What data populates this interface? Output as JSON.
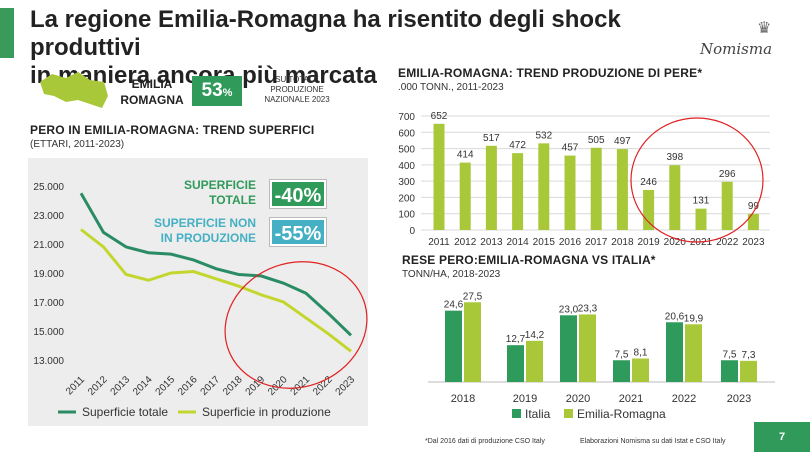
{
  "header": {
    "title_line1": "La regione Emilia-Romagna ha risentito degli shock produttivi",
    "title_line2": "in maniera ancora più marcata",
    "logo": "Nomisma"
  },
  "region": {
    "name_line1": "EMILIA",
    "name_line2": "ROMAGNA",
    "share_value": "53",
    "share_unit": "%",
    "share_note": "SU TOTALE PRODUZIONE NAZIONALE 2023"
  },
  "colors": {
    "accent": "#2f9a5a",
    "italia": "#2e9a5c",
    "emilia": "#a8c83a",
    "line_total": "#2a8c64",
    "line_prod": "#c3d62e",
    "badge_prod": "#45b0c3",
    "circle": "#e02020"
  },
  "annotations": {
    "superficie_totale_l1": "SUPERFICIE",
    "superficie_totale_l2": "TOTALE",
    "superficie_totale_badge": "-40%",
    "superficie_non_prod_l1": "SUPERFICIE NON",
    "superficie_non_prod_l2": "IN PRODUZIONE",
    "superficie_non_prod_badge": "-55%"
  },
  "footer": {
    "note": "*Dal 2016 dati di produzione CSO Italy",
    "source": "Elaborazioni Nomisma su dati Istat e CSO Italy",
    "page": "7"
  },
  "chart_data": [
    {
      "type": "line",
      "title": "PERO IN EMILIA-ROMAGNA: TREND SUPERFICI",
      "subtitle": "(ETTARI, 2011-2023)",
      "x": [
        "2011",
        "2012",
        "2013",
        "2014",
        "2015",
        "2016",
        "2017",
        "2018",
        "2019",
        "2020",
        "2021",
        "2022",
        "2023"
      ],
      "yticks": [
        "25.000",
        "23.000",
        "21.000",
        "19.000",
        "17.000",
        "15.000",
        "13.000"
      ],
      "ylim": [
        13000,
        25000
      ],
      "series": [
        {
          "name": "Superficie totale",
          "values": [
            24500,
            21800,
            20800,
            20400,
            20300,
            19900,
            19300,
            18900,
            18800,
            18300,
            17600,
            16200,
            14700
          ]
        },
        {
          "name": "Superficie in produzione",
          "values": [
            22000,
            20800,
            18900,
            18500,
            19000,
            19100,
            18600,
            18100,
            17500,
            17000,
            15900,
            14800,
            13600
          ]
        }
      ]
    },
    {
      "type": "bar",
      "title": "EMILIA-ROMAGNA: TREND PRODUZIONE DI PERE*",
      "subtitle": ".000 TONN., 2011-2023",
      "categories": [
        "2011",
        "2012",
        "2013",
        "2014",
        "2015",
        "2016",
        "2017",
        "2018",
        "2019",
        "2020",
        "2021",
        "2022",
        "2023"
      ],
      "values": [
        652,
        414,
        517,
        472,
        532,
        457,
        505,
        497,
        246,
        398,
        131,
        296,
        99
      ],
      "yticks": [
        "700",
        "600",
        "500",
        "400",
        "300",
        "200",
        "100",
        "0"
      ],
      "ylim": [
        0,
        700
      ]
    },
    {
      "type": "bar",
      "title": "RESE PERO:EMILIA-ROMAGNA VS ITALIA*",
      "subtitle": "TONN/HA, 2018-2023",
      "categories": [
        "2018",
        "2019",
        "2020",
        "2021",
        "2022",
        "2023"
      ],
      "series": [
        {
          "name": "Italia",
          "values": [
            24.6,
            12.7,
            23.0,
            7.5,
            20.6,
            7.5
          ],
          "labels": [
            "24,6",
            "12,7",
            "23,0",
            "7,5",
            "20,6",
            "7,5"
          ]
        },
        {
          "name": "Emilia-Romagna",
          "values": [
            27.5,
            14.2,
            23.3,
            8.1,
            19.9,
            7.3
          ],
          "labels": [
            "27,5",
            "14,2",
            "23,3",
            "8,1",
            "19,9",
            "7,3"
          ]
        }
      ],
      "ylim": [
        0,
        30
      ]
    }
  ]
}
